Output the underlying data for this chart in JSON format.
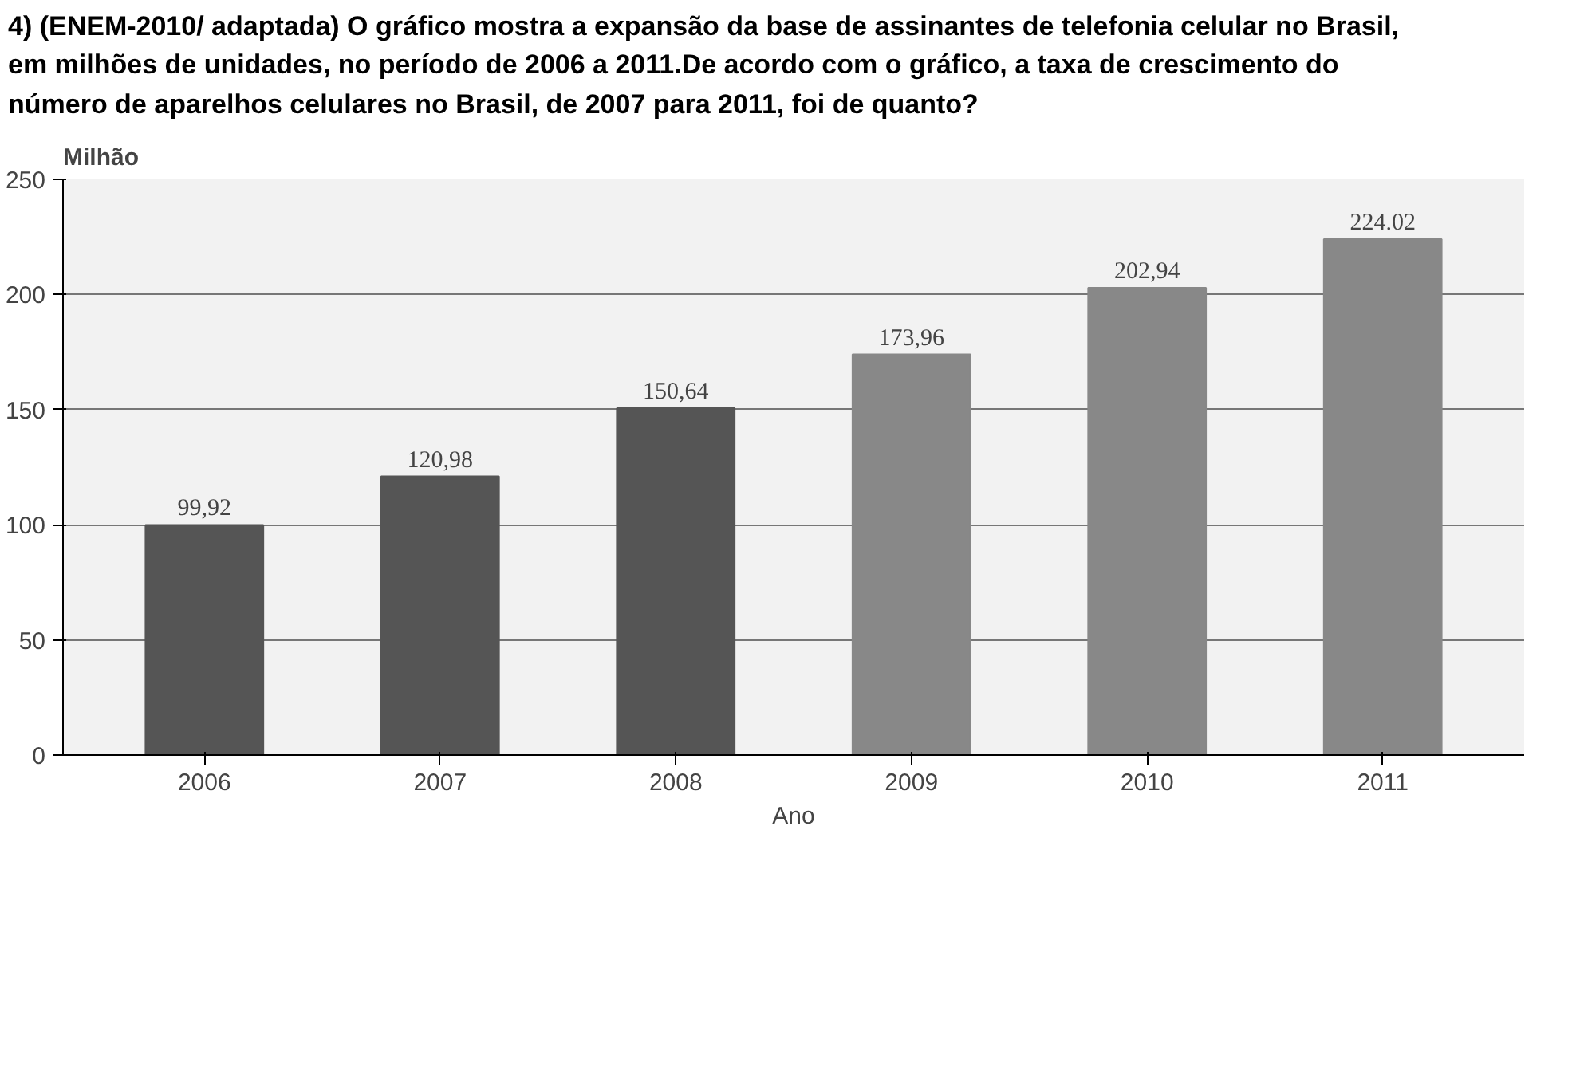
{
  "chart_data": {
    "type": "bar",
    "title": "4) (ENEM-2010/ adaptada) O gráfico mostra a expansão da base de assinantes de telefonia celular no Brasil, em milhões de unidades, no período de 2006 a 2011.De acordo com o gráfico, a taxa de crescimento do número de aparelhos celulares no Brasil, de 2007 para 2011, foi de quanto?",
    "ylabel": "Milhão",
    "xlabel": "Ano",
    "categories": [
      "2006",
      "2007",
      "2008",
      "2009",
      "2010",
      "2011"
    ],
    "values": [
      99.92,
      120.98,
      150.64,
      173.96,
      202.94,
      224.02
    ],
    "value_labels": [
      "99,92",
      "120,98",
      "150,64",
      "173,96",
      "202,94",
      "224.02"
    ],
    "colors": [
      "#555555",
      "#555555",
      "#555555",
      "#888888",
      "#888888",
      "#888888"
    ],
    "ylim": [
      0,
      250
    ],
    "yticks": [
      0,
      50,
      100,
      150,
      200,
      250
    ],
    "grid": "y"
  }
}
